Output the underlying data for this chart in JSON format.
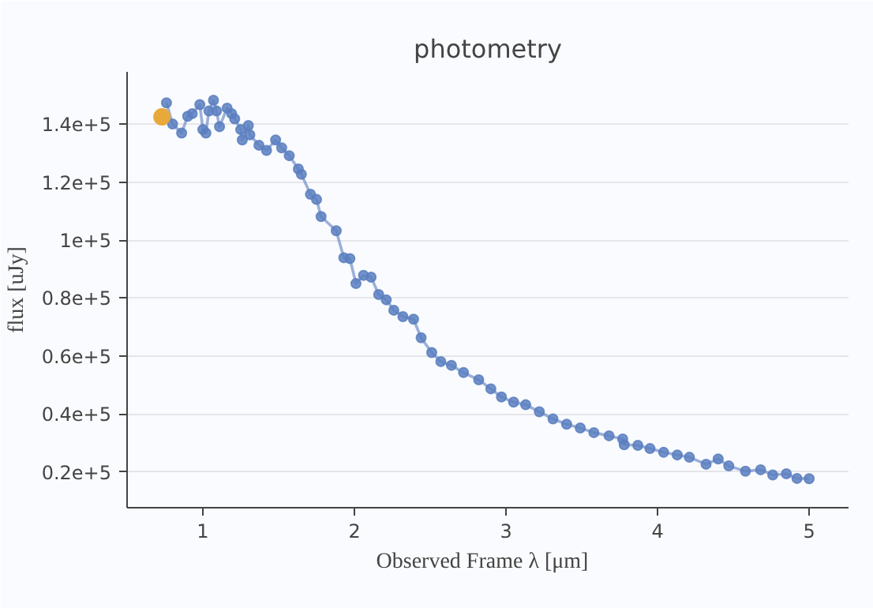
{
  "chart_data": {
    "type": "line",
    "title": "photometry",
    "xlabel": "Observed Frame  λ  [μm]",
    "ylabel": "flux [uJy]",
    "series": [
      {
        "color": "#5b7fc0",
        "marker": "circle",
        "x": [
          0.76,
          0.8,
          0.86,
          0.9,
          0.93,
          0.98,
          1.0,
          1.02,
          1.04,
          1.07,
          1.09,
          1.11,
          1.16,
          1.19,
          1.21,
          1.25,
          1.26,
          1.3,
          1.31,
          1.37,
          1.42,
          1.48,
          1.52,
          1.57,
          1.63,
          1.65,
          1.71,
          1.75,
          1.78,
          1.88,
          1.93,
          1.97,
          2.01,
          2.06,
          2.11,
          2.16,
          2.21,
          2.26,
          2.32,
          2.39,
          2.44,
          2.51,
          2.57,
          2.64,
          2.72,
          2.82,
          2.9,
          2.97,
          3.05,
          3.13,
          3.22,
          3.31,
          3.4,
          3.49,
          3.58,
          3.68,
          3.77,
          3.78,
          3.87,
          3.95,
          4.04,
          4.13,
          4.21,
          4.32,
          4.4,
          4.47,
          4.58,
          4.68,
          4.76,
          4.85,
          4.92,
          5.0
        ],
        "values": [
          147300,
          140000,
          136900,
          142700,
          143600,
          146700,
          138100,
          136900,
          144500,
          148200,
          144500,
          139100,
          145500,
          143600,
          141800,
          138100,
          134500,
          139500,
          136300,
          132700,
          130900,
          134500,
          131800,
          129100,
          124500,
          122700,
          115800,
          114000,
          108100,
          103200,
          93900,
          93600,
          85000,
          87800,
          87200,
          81200,
          79400,
          75800,
          73600,
          72700,
          66300,
          61200,
          58100,
          56800,
          54300,
          51800,
          48700,
          45900,
          44100,
          43200,
          40800,
          38300,
          36500,
          35200,
          33600,
          32500,
          31400,
          29400,
          29200,
          28100,
          26800,
          25900,
          25100,
          22700,
          24500,
          22100,
          20300,
          20800,
          19000,
          19400,
          17800,
          17700
        ]
      },
      {
        "type": "scatter",
        "color": "#e8a93a",
        "marker": "circle",
        "x": [
          0.73
        ],
        "values": [
          142500
        ]
      }
    ],
    "xlim": [
      0.5,
      5.26
    ],
    "ylim": [
      7700,
      158000
    ],
    "xticks": [
      1,
      2,
      3,
      4,
      5
    ],
    "yticks": [
      {
        "value": 20000,
        "label": "0.2e+5"
      },
      {
        "value": 40000,
        "label": "0.4e+5"
      },
      {
        "value": 60000,
        "label": "0.6e+5"
      },
      {
        "value": 80000,
        "label": "0.8e+5"
      },
      {
        "value": 100000,
        "label": "1e+5"
      },
      {
        "value": 120000,
        "label": "1.2e+5"
      },
      {
        "value": 140000,
        "label": "1.4e+5"
      }
    ],
    "grid": "y"
  }
}
